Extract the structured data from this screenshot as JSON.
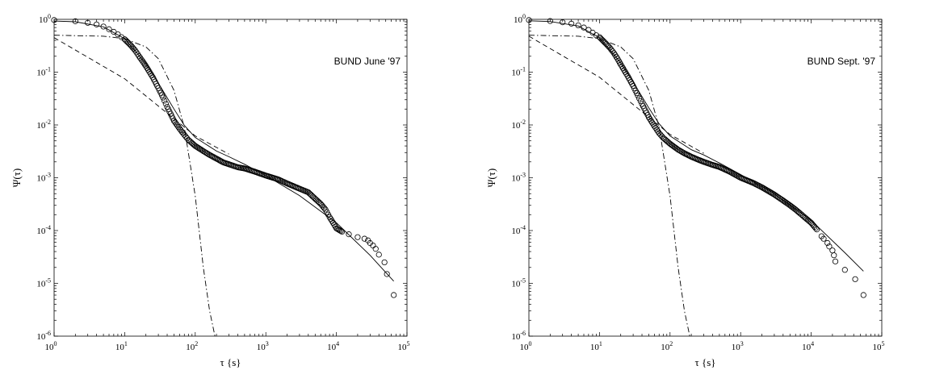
{
  "chart_data": [
    {
      "type": "scatter",
      "annotation": "BUND June '97",
      "xlabel": "τ {s}",
      "ylabel": "Ψ(τ)",
      "xscale": "log",
      "yscale": "log",
      "xlim": [
        1,
        100000
      ],
      "ylim": [
        1e-06,
        1
      ],
      "grid": false,
      "x_ticks": [
        {
          "base": "10",
          "exp": "0"
        },
        {
          "base": "10",
          "exp": "1"
        },
        {
          "base": "10",
          "exp": "2"
        },
        {
          "base": "10",
          "exp": "3"
        },
        {
          "base": "10",
          "exp": "4"
        },
        {
          "base": "10",
          "exp": "5"
        }
      ],
      "y_ticks": [
        {
          "base": "10",
          "exp": "-6"
        },
        {
          "base": "10",
          "exp": "-5"
        },
        {
          "base": "10",
          "exp": "-4"
        },
        {
          "base": "10",
          "exp": "-3"
        },
        {
          "base": "10",
          "exp": "-2"
        },
        {
          "base": "10",
          "exp": "-1"
        },
        {
          "base": "10",
          "exp": "0"
        }
      ],
      "series": [
        {
          "style": "circles",
          "x": [
            1,
            2,
            3,
            4,
            5,
            6,
            7,
            8,
            9,
            10,
            12,
            14,
            16,
            18,
            20,
            25,
            30,
            35,
            40,
            50,
            60,
            70,
            80,
            100,
            130,
            160,
            200,
            250,
            300,
            400,
            500,
            700,
            1000,
            1500,
            2000,
            3000,
            4000,
            5000,
            6000,
            7000,
            8000,
            9000,
            10000,
            12000,
            15000,
            20000,
            25000,
            28000,
            30000,
            33000,
            36000,
            40000,
            48000,
            52000,
            65000
          ],
          "y": [
            0.97,
            0.92,
            0.86,
            0.8,
            0.73,
            0.65,
            0.58,
            0.52,
            0.46,
            0.42,
            0.33,
            0.26,
            0.2,
            0.16,
            0.13,
            0.08,
            0.05,
            0.033,
            0.022,
            0.012,
            0.0085,
            0.0065,
            0.0052,
            0.004,
            0.0032,
            0.0027,
            0.0023,
            0.00195,
            0.0018,
            0.00158,
            0.0015,
            0.0013,
            0.0011,
            0.00093,
            0.00078,
            0.00062,
            0.00053,
            0.0004,
            0.00032,
            0.00025,
            0.00018,
            0.00014,
            0.00011,
            9.5e-05,
            8.5e-05,
            7.5e-05,
            7e-05,
            6.5e-05,
            5.8e-05,
            5.2e-05,
            4.5e-05,
            3.5e-05,
            2.5e-05,
            1.5e-05,
            6e-06
          ]
        },
        {
          "style": "solid",
          "x": [
            1,
            2,
            5,
            10,
            20,
            30,
            50,
            70,
            100,
            200,
            300,
            500,
            1000,
            3000,
            10000,
            30000,
            65000
          ],
          "y": [
            0.93,
            0.9,
            0.72,
            0.43,
            0.145,
            0.062,
            0.02,
            0.0098,
            0.0058,
            0.0032,
            0.0025,
            0.0018,
            0.0011,
            0.00046,
            0.00014,
            3.4e-05,
            1.1e-05
          ]
        },
        {
          "style": "dashed",
          "x": [
            1,
            10,
            100,
            300
          ],
          "y": [
            0.45,
            0.075,
            0.0062,
            0.0028
          ]
        },
        {
          "style": "dashdot",
          "x": [
            1,
            5,
            10,
            20,
            30,
            50,
            70,
            100,
            130,
            160,
            190
          ],
          "y": [
            0.5,
            0.48,
            0.43,
            0.3,
            0.18,
            0.045,
            0.009,
            0.00045,
            2e-05,
            3e-06,
            1e-06
          ]
        }
      ]
    },
    {
      "type": "scatter",
      "annotation": "BUND Sept. '97",
      "xlabel": "τ {s}",
      "ylabel": "Ψ(τ)",
      "xscale": "log",
      "yscale": "log",
      "xlim": [
        1,
        100000
      ],
      "ylim": [
        1e-06,
        1
      ],
      "grid": false,
      "x_ticks": [
        {
          "base": "10",
          "exp": "0"
        },
        {
          "base": "10",
          "exp": "1"
        },
        {
          "base": "10",
          "exp": "2"
        },
        {
          "base": "10",
          "exp": "3"
        },
        {
          "base": "10",
          "exp": "4"
        },
        {
          "base": "10",
          "exp": "5"
        }
      ],
      "y_ticks": [
        {
          "base": "10",
          "exp": "-6"
        },
        {
          "base": "10",
          "exp": "-5"
        },
        {
          "base": "10",
          "exp": "-4"
        },
        {
          "base": "10",
          "exp": "-3"
        },
        {
          "base": "10",
          "exp": "-2"
        },
        {
          "base": "10",
          "exp": "-1"
        },
        {
          "base": "10",
          "exp": "0"
        }
      ],
      "series": [
        {
          "style": "circles",
          "x": [
            1,
            2,
            3,
            4,
            5,
            6,
            7,
            8,
            9,
            10,
            12,
            14,
            16,
            18,
            20,
            25,
            30,
            35,
            40,
            50,
            60,
            70,
            80,
            100,
            130,
            160,
            200,
            250,
            300,
            400,
            500,
            700,
            1000,
            1500,
            2000,
            3000,
            4000,
            5000,
            6000,
            7000,
            8000,
            10000,
            12000,
            14000,
            15000,
            17000,
            18000,
            20000,
            21000,
            22000,
            30000,
            42000,
            55000
          ],
          "y": [
            0.97,
            0.93,
            0.88,
            0.83,
            0.77,
            0.7,
            0.63,
            0.56,
            0.5,
            0.46,
            0.36,
            0.29,
            0.23,
            0.18,
            0.14,
            0.085,
            0.055,
            0.036,
            0.025,
            0.014,
            0.0095,
            0.007,
            0.0057,
            0.0044,
            0.0034,
            0.0029,
            0.0025,
            0.0022,
            0.002,
            0.00175,
            0.0016,
            0.0013,
            0.001,
            0.0008,
            0.00066,
            0.00048,
            0.00037,
            0.0003,
            0.00025,
            0.00021,
            0.00018,
            0.00014,
            0.000105,
            7.8e-05,
            7e-05,
            5.8e-05,
            5e-05,
            4.2e-05,
            3.4e-05,
            2.6e-05,
            1.8e-05,
            1.2e-05,
            6e-06
          ]
        },
        {
          "style": "solid",
          "x": [
            1,
            2,
            5,
            10,
            20,
            30,
            50,
            70,
            100,
            200,
            300,
            500,
            1000,
            3000,
            10000,
            30000,
            55000
          ],
          "y": [
            0.94,
            0.91,
            0.75,
            0.45,
            0.15,
            0.065,
            0.021,
            0.0105,
            0.0062,
            0.0034,
            0.0027,
            0.0019,
            0.00115,
            0.0005,
            0.000155,
            3.8e-05,
            1.7e-05
          ]
        },
        {
          "style": "dashed",
          "x": [
            1,
            10,
            100,
            300
          ],
          "y": [
            0.48,
            0.08,
            0.0066,
            0.0029
          ]
        },
        {
          "style": "dashdot",
          "x": [
            1,
            5,
            10,
            20,
            30,
            50,
            70,
            100,
            130,
            160,
            190
          ],
          "y": [
            0.5,
            0.48,
            0.43,
            0.3,
            0.18,
            0.045,
            0.009,
            0.00045,
            2e-05,
            3e-06,
            1e-06
          ]
        }
      ]
    }
  ]
}
